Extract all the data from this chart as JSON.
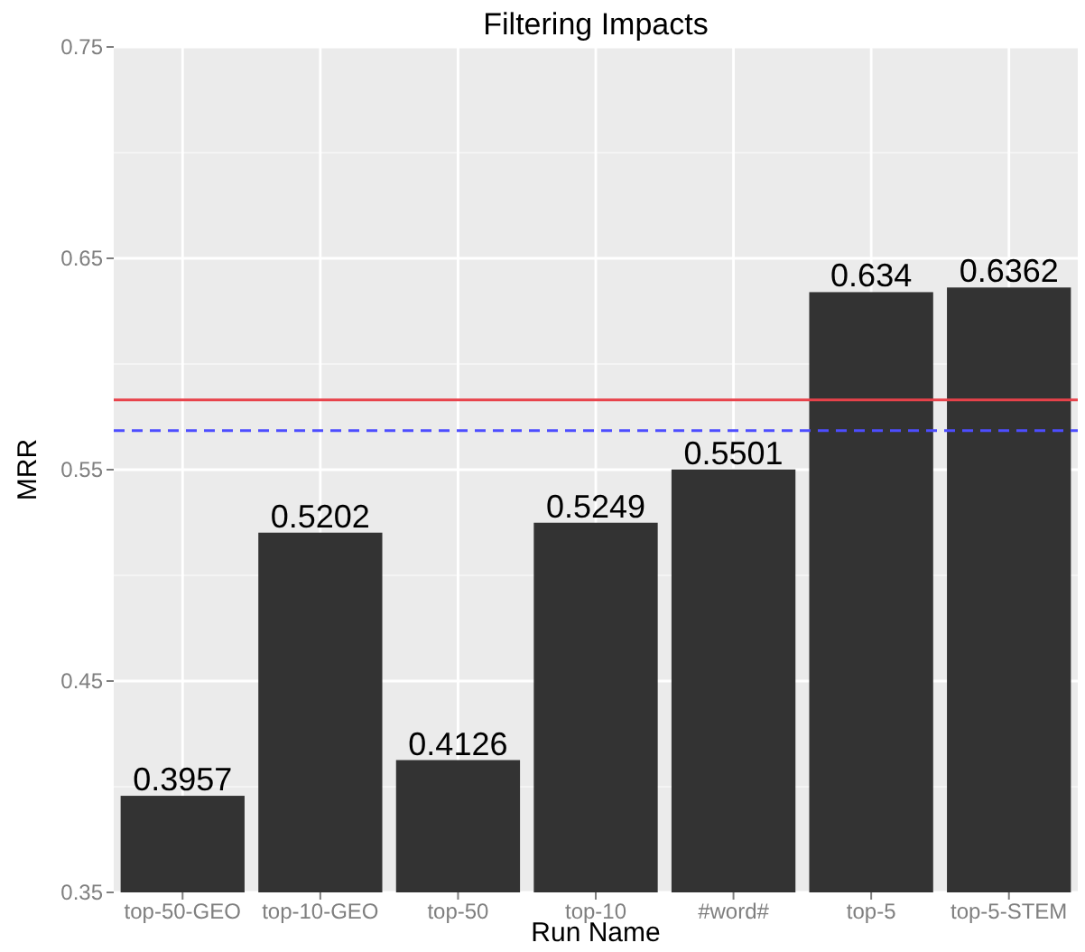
{
  "chart_data": {
    "type": "bar",
    "title": "Filtering Impacts",
    "xlabel": "Run Name",
    "ylabel": "MRR",
    "categories": [
      "top-50-GEO",
      "top-10-GEO",
      "top-50",
      "top-10",
      "#word#",
      "top-5",
      "top-5-STEM"
    ],
    "values": [
      0.3957,
      0.5202,
      0.4126,
      0.5249,
      0.5501,
      0.634,
      0.6362
    ],
    "color": "#333333",
    "data_labels": true,
    "ylim": [
      0.35,
      0.75
    ],
    "yticks": [
      0.35,
      0.45,
      0.55,
      0.65,
      0.75
    ],
    "grid": true,
    "ref_lines": [
      {
        "axis": "y",
        "value": 0.583,
        "color": "#e8424a",
        "line_style": "solid"
      },
      {
        "axis": "y",
        "value": 0.5685,
        "color": "#4d4dff",
        "line_style": "dashed"
      }
    ]
  }
}
